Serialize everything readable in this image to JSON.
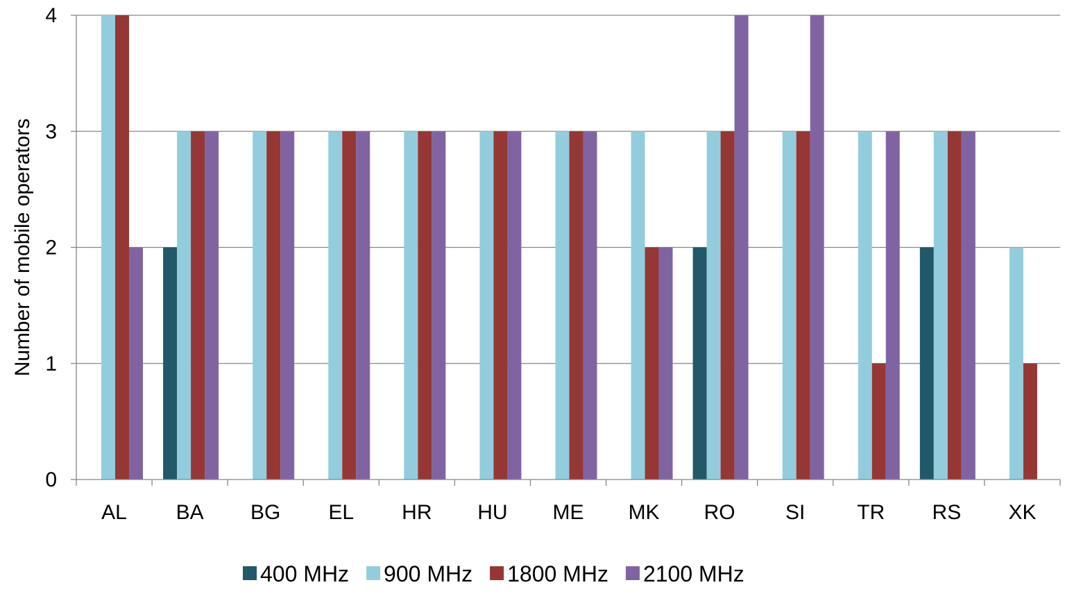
{
  "chart_data": {
    "type": "bar",
    "title": "",
    "xlabel": "",
    "ylabel": "Number of mobile operators",
    "ylim": [
      0,
      4
    ],
    "yticks": [
      0,
      1,
      2,
      3,
      4
    ],
    "grid": true,
    "legend_position": "bottom",
    "categories": [
      "AL",
      "BA",
      "BG",
      "EL",
      "HR",
      "HU",
      "ME",
      "MK",
      "RO",
      "SI",
      "TR",
      "RS",
      "XK"
    ],
    "series": [
      {
        "name": "400 MHz",
        "color": "#215968",
        "values": [
          0,
          2,
          0,
          0,
          0,
          0,
          0,
          0,
          2,
          0,
          0,
          2,
          0
        ]
      },
      {
        "name": "900 MHz",
        "color": "#93CDDD",
        "values": [
          4,
          3,
          3,
          3,
          3,
          3,
          3,
          3,
          3,
          3,
          3,
          3,
          2
        ]
      },
      {
        "name": "1800 MHz",
        "color": "#953735",
        "values": [
          4,
          3,
          3,
          3,
          3,
          3,
          3,
          2,
          3,
          3,
          1,
          3,
          1
        ]
      },
      {
        "name": "2100 MHz",
        "color": "#8064A2",
        "values": [
          2,
          3,
          3,
          3,
          3,
          3,
          3,
          2,
          4,
          4,
          3,
          3,
          0
        ]
      }
    ]
  }
}
